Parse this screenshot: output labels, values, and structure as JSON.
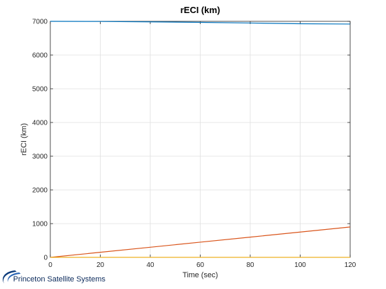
{
  "chart_data": {
    "type": "line",
    "title": "rECI (km)",
    "xlabel": "Time (sec)",
    "ylabel": "rECI (km)",
    "xlim": [
      0,
      120
    ],
    "ylim": [
      0,
      7000
    ],
    "x_ticks": [
      0,
      20,
      40,
      60,
      80,
      100,
      120
    ],
    "y_ticks": [
      0,
      1000,
      2000,
      3000,
      4000,
      5000,
      6000,
      7000
    ],
    "grid": true,
    "series": [
      {
        "color": "#0072bd",
        "x": [
          0,
          20,
          40,
          60,
          80,
          100,
          120
        ],
        "values": [
          7000,
          6996,
          6985,
          6970,
          6950,
          6928,
          6920
        ]
      },
      {
        "color": "#d95319",
        "x": [
          0,
          20,
          40,
          60,
          80,
          100,
          120
        ],
        "values": [
          0,
          150,
          300,
          450,
          600,
          750,
          900
        ]
      },
      {
        "color": "#edb120",
        "x": [
          0,
          20,
          40,
          60,
          80,
          100,
          120
        ],
        "values": [
          0,
          0,
          0,
          0,
          0,
          0,
          0
        ]
      }
    ]
  },
  "logo": {
    "text": "Princeton Satellite Systems"
  }
}
